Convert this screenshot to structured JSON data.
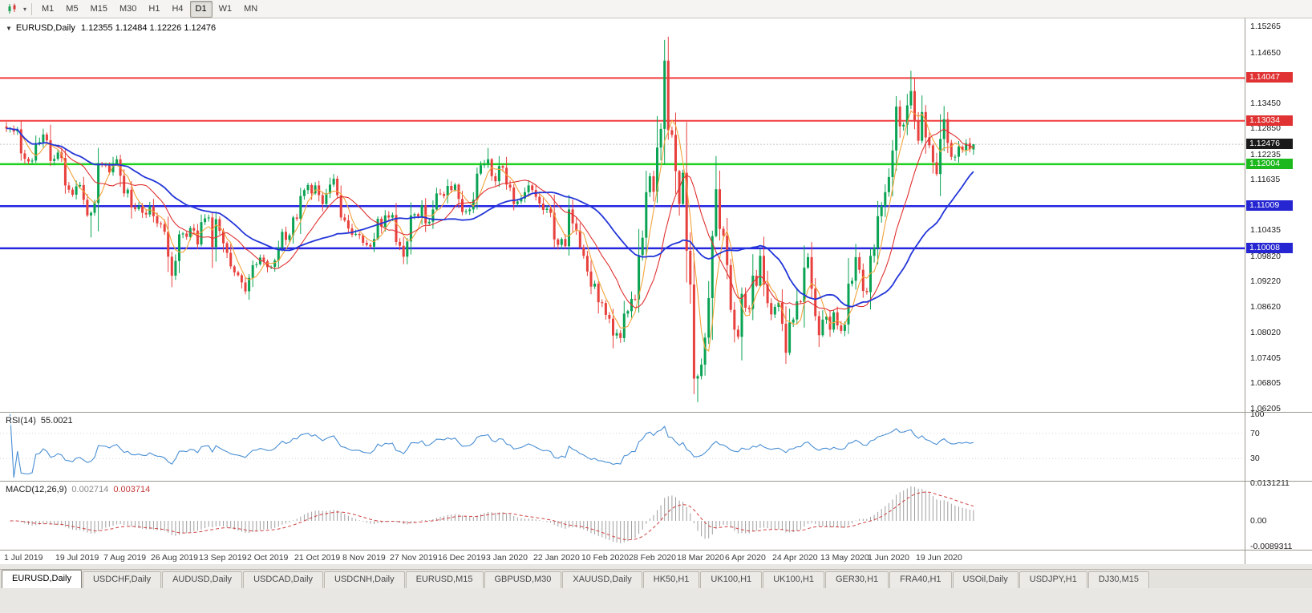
{
  "toolbar": {
    "timeframes": [
      "M1",
      "M5",
      "M15",
      "M30",
      "H1",
      "H4",
      "D1",
      "W1",
      "MN"
    ],
    "active": "D1"
  },
  "chart": {
    "title": "EURUSD,Daily",
    "ohlc": "1.12355 1.12484 1.12226 1.12476",
    "collapse_icon": "▼"
  },
  "rsi": {
    "label": "RSI(14)",
    "value": "55.0021",
    "axis": [
      "100",
      "70",
      "30"
    ],
    "levels": [
      70,
      30
    ]
  },
  "macd": {
    "label": "MACD(12,26,9)",
    "value_main": "0.002714",
    "value_signal": "0.003714",
    "axis_top": "0.0131211",
    "axis_zero": "0.00",
    "axis_bottom": "-0.0089311"
  },
  "tabs": {
    "items": [
      "EURUSD,Daily",
      "USDCHF,Daily",
      "AUDUSD,Daily",
      "USDCAD,Daily",
      "USDCNH,Daily",
      "EURUSD,M15",
      "GBPUSD,M30",
      "XAUUSD,Daily",
      "HK50,H1",
      "UK100,H1",
      "UK100,H1",
      "GER30,H1",
      "FRA40,H1",
      "USOil,Daily",
      "USDJPY,H1",
      "DJ30,M15"
    ],
    "active_index": 0
  },
  "colors": {
    "up": "#0aa353",
    "down": "#e8403c",
    "bid_box": "#1a1a1a",
    "rsi_line": "#4a8fd4",
    "macd_hist": "#9e9e9e",
    "macd_signal": "#d04040"
  },
  "chart_data": {
    "type": "candlestick",
    "symbol": "EURUSD",
    "timeframe": "Daily",
    "current": {
      "open": 1.12355,
      "high": 1.12484,
      "low": 1.12226,
      "close": 1.12476
    },
    "ylim": [
      1.0613,
      1.1548
    ],
    "price_axis_ticks": [
      1.15265,
      1.1465,
      1.1345,
      1.1285,
      1.12235,
      1.11635,
      1.10435,
      1.0982,
      1.0922,
      1.0862,
      1.0802,
      1.07405,
      1.06805,
      1.06205
    ],
    "hlines": [
      {
        "price": 1.14047,
        "color": "#f23b3b",
        "box": "#e03232",
        "width": 2,
        "type": "resistance"
      },
      {
        "price": 1.13034,
        "color": "#f23b3b",
        "box": "#e03232",
        "width": 2,
        "type": "resistance"
      },
      {
        "price": 1.12004,
        "color": "#1ed11e",
        "box": "#1db81d",
        "width": 2.5,
        "type": "level"
      },
      {
        "price": 1.11009,
        "color": "#2525e0",
        "box": "#2525d2",
        "width": 2.5,
        "type": "support"
      },
      {
        "price": 1.10008,
        "color": "#2525e0",
        "box": "#2525d2",
        "width": 2.5,
        "type": "support"
      }
    ],
    "bid": {
      "price": 1.12476
    },
    "date_ticks": [
      {
        "i": 0,
        "label": "1 Jul 2019"
      },
      {
        "i": 14,
        "label": "19 Jul 2019"
      },
      {
        "i": 27,
        "label": "7 Aug 2019"
      },
      {
        "i": 40,
        "label": "26 Aug 2019"
      },
      {
        "i": 53,
        "label": "13 Sep 2019"
      },
      {
        "i": 66,
        "label": "2 Oct 2019"
      },
      {
        "i": 79,
        "label": "21 Oct 2019"
      },
      {
        "i": 92,
        "label": "8 Nov 2019"
      },
      {
        "i": 105,
        "label": "27 Nov 2019"
      },
      {
        "i": 118,
        "label": "16 Dec 2019"
      },
      {
        "i": 131,
        "label": "3 Jan 2020"
      },
      {
        "i": 144,
        "label": "22 Jan 2020"
      },
      {
        "i": 157,
        "label": "10 Feb 2020"
      },
      {
        "i": 170,
        "label": "28 Feb 2020"
      },
      {
        "i": 183,
        "label": "18 Mar 2020"
      },
      {
        "i": 196,
        "label": "6 Apr 2020"
      },
      {
        "i": 209,
        "label": "24 Apr 2020"
      },
      {
        "i": 222,
        "label": "13 May 2020"
      },
      {
        "i": 235,
        "label": "1 Jun 2020"
      },
      {
        "i": 248,
        "label": "19 Jun 2020"
      }
    ],
    "first_open": 1.129,
    "closes": [
      1.1285,
      1.1285,
      1.1278,
      1.1283,
      1.1226,
      1.1213,
      1.1207,
      1.1209,
      1.125,
      1.1253,
      1.1271,
      1.1257,
      1.1208,
      1.1213,
      1.1228,
      1.1215,
      1.115,
      1.114,
      1.1128,
      1.1148,
      1.1151,
      1.1116,
      1.1079,
      1.1085,
      1.1108,
      1.1203,
      1.12,
      1.1197,
      1.1181,
      1.1201,
      1.1212,
      1.1173,
      1.1131,
      1.114,
      1.1098,
      1.1094,
      1.11,
      1.1085,
      1.1081,
      1.11,
      1.1077,
      1.106,
      1.1058,
      1.104,
      1.0981,
      1.0936,
      1.0971,
      1.1034,
      1.1036,
      1.1028,
      1.1049,
      1.1043,
      1.101,
      1.1063,
      1.1072,
      1.1074,
      1.1004,
      1.107,
      1.1042,
      1.1013,
      1.099,
      1.0958,
      1.0944,
      1.0937,
      1.092,
      1.0899,
      1.0931,
      1.0961,
      1.0963,
      1.0979,
      1.097,
      1.0956,
      1.0957,
      1.0972,
      1.1003,
      1.104,
      1.1021,
      1.1032,
      1.1074,
      1.1071,
      1.1125,
      1.1139,
      1.1151,
      1.1131,
      1.115,
      1.1127,
      1.1106,
      1.1131,
      1.1152,
      1.1166,
      1.1127,
      1.1074,
      1.1067,
      1.1048,
      1.1033,
      1.1035,
      1.1032,
      1.1014,
      1.1009,
      1.1005,
      1.1023,
      1.1071,
      1.1052,
      1.1079,
      1.1074,
      1.108,
      1.1016,
      1.1007,
      1.0981,
      1.1017,
      1.1079,
      1.1082,
      1.1077,
      1.1103,
      1.106,
      1.1064,
      1.1093,
      1.1131,
      1.113,
      1.1125,
      1.1149,
      1.1139,
      1.1152,
      1.1118,
      1.1087,
      1.1089,
      1.1093,
      1.1116,
      1.1178,
      1.1198,
      1.1201,
      1.1212,
      1.1172,
      1.116,
      1.1196,
      1.1192,
      1.1152,
      1.1145,
      1.1106,
      1.1112,
      1.1119,
      1.1134,
      1.115,
      1.1139,
      1.1123,
      1.1107,
      1.1092,
      1.1095,
      1.1085,
      1.1022,
      1.1009,
      1.1023,
      1.1006,
      1.1093,
      1.106,
      1.1043,
      1.1003,
      1.0983,
      1.0946,
      1.091,
      1.0917,
      1.0873,
      1.0871,
      1.0843,
      1.0834,
      1.0794,
      1.08,
      1.0788,
      1.0846,
      1.0852,
      1.0881,
      1.088,
      1.0985,
      1.1026,
      1.1134,
      1.1172,
      1.1135,
      1.124,
      1.1284,
      1.1446,
      1.1281,
      1.127,
      1.1184,
      1.1106,
      1.118,
      1.0995,
      1.0915,
      1.0692,
      1.0698,
      1.0725,
      1.0789,
      1.0883,
      1.103,
      1.1141,
      1.1047,
      1.1031,
      1.0961,
      1.0855,
      1.0808,
      1.0791,
      1.0893,
      1.086,
      1.0857,
      1.0936,
      1.0912,
      1.0983,
      1.0915,
      1.0871,
      1.0844,
      1.0862,
      1.0872,
      1.0822,
      1.0753,
      1.0825,
      1.0832,
      1.0875,
      1.0873,
      1.0955,
      1.098,
      1.0905,
      1.084,
      1.0795,
      1.0832,
      1.0839,
      1.0808,
      1.0849,
      1.0818,
      1.0805,
      1.082,
      1.0917,
      1.0924,
      1.098,
      1.095,
      1.09,
      1.0897,
      1.0983,
      1.1002,
      1.1077,
      1.1101,
      1.1134,
      1.117,
      1.1233,
      1.1337,
      1.129,
      1.1294,
      1.134,
      1.1374,
      1.1302,
      1.1256,
      1.1324,
      1.1264,
      1.1245,
      1.1205,
      1.1177,
      1.126,
      1.1307,
      1.1251,
      1.1218,
      1.1218,
      1.1242,
      1.1234,
      1.125,
      1.12355,
      1.12476
    ],
    "wick_overrides": {
      "23": {
        "l": 1.1027
      },
      "46": {
        "l": 1.0926
      },
      "66": {
        "l": 1.0879
      },
      "131": {
        "h": 1.1239
      },
      "167": {
        "l": 1.0777
      },
      "179": {
        "h": 1.1495
      },
      "187": {
        "l": 1.0655
      },
      "188": {
        "l": 1.0636
      },
      "212": {
        "l": 1.0727
      },
      "221": {
        "l": 1.0767
      },
      "242": {
        "h": 1.1362
      },
      "246": {
        "h": 1.1422
      },
      "263": {
        "h": 1.12484,
        "l": 1.12226
      }
    },
    "moving_averages": [
      {
        "period": 5,
        "color": "#f2a33a",
        "width": 1.1
      },
      {
        "period": 14,
        "color": "#e03131",
        "width": 1.1
      },
      {
        "period": 34,
        "color": "#2336d9",
        "width": 1.8
      }
    ],
    "indicators": {
      "rsi_period": 14,
      "macd": [
        12,
        26,
        9
      ],
      "macd_range": [
        -0.0089311,
        0.0131211
      ]
    }
  }
}
